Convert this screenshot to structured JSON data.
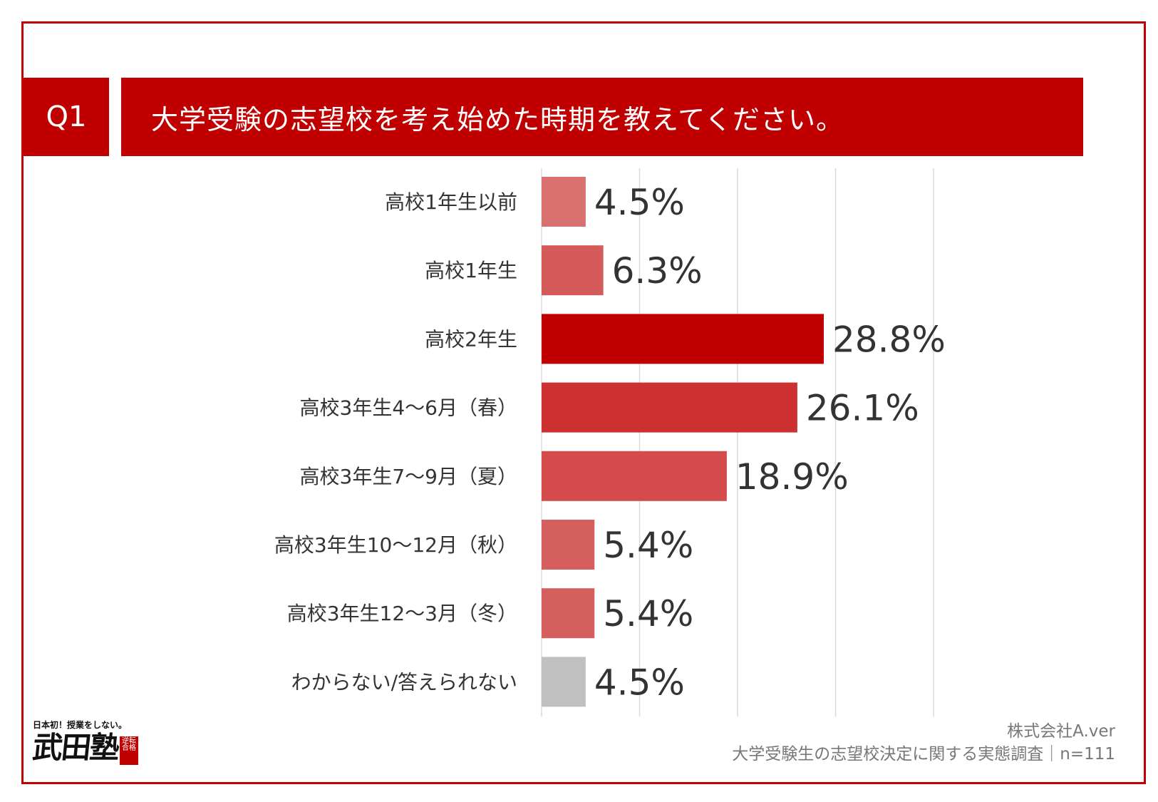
{
  "header": {
    "badge": "Q1",
    "question": "大学受験の志望校を考え始めた時期を教えてください。"
  },
  "chart_data": {
    "type": "bar",
    "orientation": "horizontal",
    "categories": [
      "高校1年生以前",
      "高校1年生",
      "高校2年生",
      "高校3年生4〜6月（春）",
      "高校3年生7〜9月（夏）",
      "高校3年生10〜12月（秋）",
      "高校3年生12〜3月（冬）",
      "わからない/答えられない"
    ],
    "values": [
      4.5,
      6.3,
      28.8,
      26.1,
      18.9,
      5.4,
      5.4,
      4.5
    ],
    "value_labels": [
      "4.5%",
      "6.3%",
      "28.8%",
      "26.1%",
      "18.9%",
      "5.4%",
      "5.4%",
      "4.5%"
    ],
    "bar_colors": [
      "#d97070",
      "#d55a5a",
      "#c00000",
      "#cd3030",
      "#d54a4a",
      "#d55e5e",
      "#d55e5e",
      "#c0c0c0"
    ],
    "xlim": [
      0,
      40
    ],
    "grid": true
  },
  "footer": {
    "company": "株式会社A.ver",
    "survey": "大学受験生の志望校決定に関する実態調査｜n=111"
  },
  "logo": {
    "tagline": "日本初！授業をしない。",
    "name": "武田塾",
    "stamp": "逆転合格"
  },
  "colors": {
    "accent": "#c00000",
    "text": "#333333",
    "grid": "#d9d9d9"
  }
}
